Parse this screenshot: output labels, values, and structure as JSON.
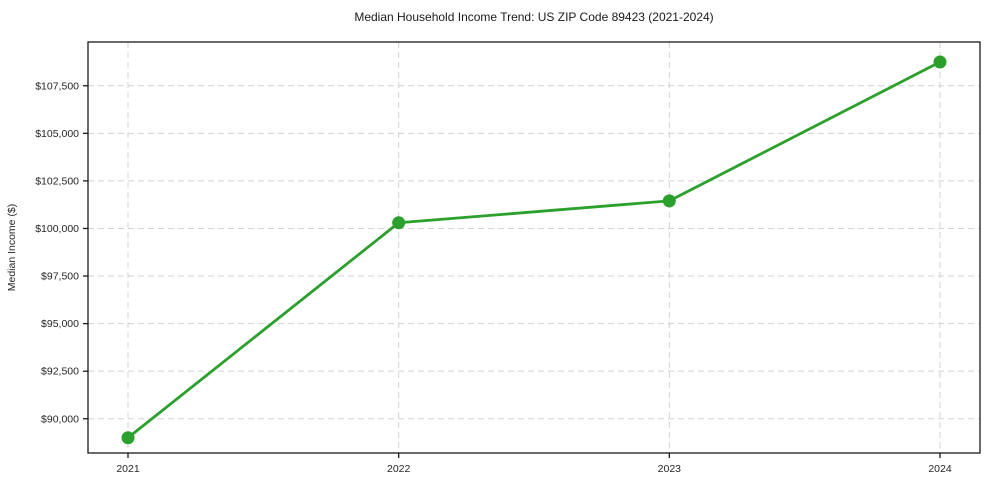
{
  "chart_data": {
    "type": "line",
    "title": "Median Household Income Trend: US ZIP Code 89423 (2021-2024)",
    "xlabel": "",
    "ylabel": "Median Income ($)",
    "x": [
      "2021",
      "2022",
      "2023",
      "2024"
    ],
    "series": [
      {
        "name": "Median Household Income",
        "values": [
          89000,
          100300,
          101450,
          108750
        ]
      }
    ],
    "ylim": [
      88200,
      109800
    ],
    "yticks": [
      90000,
      92500,
      95000,
      97500,
      100000,
      102500,
      105000,
      107500
    ],
    "ytick_labels": [
      "$90,000",
      "$92,500",
      "$95,000",
      "$97,500",
      "$100,000",
      "$102,500",
      "$105,000",
      "$107,500"
    ],
    "grid": true,
    "grid_style": "dashed",
    "legend_position": "none",
    "colors": {
      "line": "#2ca02c",
      "marker": "#2ca02c",
      "grid": "#d3d3d3",
      "axis": "#1a1a1a",
      "text": "#262626",
      "background": "#ffffff"
    }
  }
}
